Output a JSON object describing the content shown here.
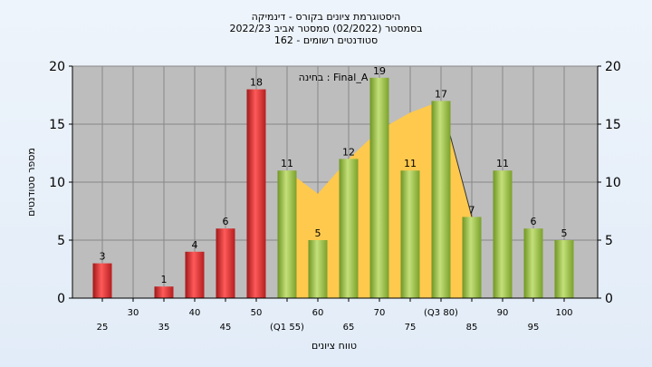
{
  "chart_data": {
    "type": "bar",
    "title_lines": [
      "היסטוגרמת ציונים בקורס - דינמיקה",
      "בסמסטר  (02/2022)  סמסטר אביב 2022/23",
      "סטודנטים רשומים - 162"
    ],
    "exam_label": "בחינה : Final_A",
    "ylabel": "מספר סטודנטים",
    "xlabel": "טווח ציונים",
    "ylim": [
      0,
      20
    ],
    "y_ticks": [
      0,
      5,
      10,
      15,
      20
    ],
    "grid": true,
    "x_ticks": [
      {
        "x": 25,
        "label": "25"
      },
      {
        "x": 30,
        "label": "30"
      },
      {
        "x": 35,
        "label": "35"
      },
      {
        "x": 40,
        "label": "40"
      },
      {
        "x": 45,
        "label": "45"
      },
      {
        "x": 50,
        "label": "50"
      },
      {
        "x": 55,
        "label": "(Q1 55)"
      },
      {
        "x": 60,
        "label": "60"
      },
      {
        "x": 65,
        "label": "65"
      },
      {
        "x": 70,
        "label": "70"
      },
      {
        "x": 75,
        "label": "75"
      },
      {
        "x": 80,
        "label": "(Q3 80)"
      },
      {
        "x": 85,
        "label": "85"
      },
      {
        "x": 90,
        "label": "90"
      },
      {
        "x": 95,
        "label": "95"
      },
      {
        "x": 100,
        "label": "100"
      }
    ],
    "bars": [
      {
        "x": 25,
        "value": 3,
        "label": "3",
        "status": "fail"
      },
      {
        "x": 35,
        "value": 1,
        "label": "1",
        "status": "fail"
      },
      {
        "x": 40,
        "value": 4,
        "label": "4",
        "status": "fail"
      },
      {
        "x": 45,
        "value": 6,
        "label": "6",
        "status": "fail"
      },
      {
        "x": 50,
        "value": 18,
        "label": "18",
        "status": "fail"
      },
      {
        "x": 55,
        "value": 11,
        "label": "11",
        "status": "pass"
      },
      {
        "x": 60,
        "value": 5,
        "label": "5",
        "status": "pass"
      },
      {
        "x": 65,
        "value": 12,
        "label": "12",
        "status": "pass"
      },
      {
        "x": 70,
        "value": 19,
        "label": "19",
        "status": "pass"
      },
      {
        "x": 75,
        "value": 11,
        "label": "11",
        "status": "pass"
      },
      {
        "x": 80,
        "value": 17,
        "label": "17",
        "status": "pass"
      },
      {
        "x": 85,
        "value": 7,
        "label": "7",
        "status": "pass"
      },
      {
        "x": 90,
        "value": 11,
        "label": "11",
        "status": "pass"
      },
      {
        "x": 95,
        "value": 6,
        "label": "6",
        "status": "pass"
      },
      {
        "x": 100,
        "value": 5,
        "label": "5",
        "status": "pass"
      }
    ],
    "iqr_area": [
      {
        "x": 55,
        "y": 11
      },
      {
        "x": 60,
        "y": 9
      },
      {
        "x": 65,
        "y": 12
      },
      {
        "x": 70,
        "y": 14.5
      },
      {
        "x": 75,
        "y": 16
      },
      {
        "x": 80,
        "y": 17
      },
      {
        "x": 85,
        "y": 7
      }
    ],
    "colors": {
      "fail": "#e53935",
      "pass": "#9bc33c",
      "iqr_area": "#ffc94d",
      "plot_bg": "#bdbdbd",
      "grid": "#888888"
    }
  }
}
